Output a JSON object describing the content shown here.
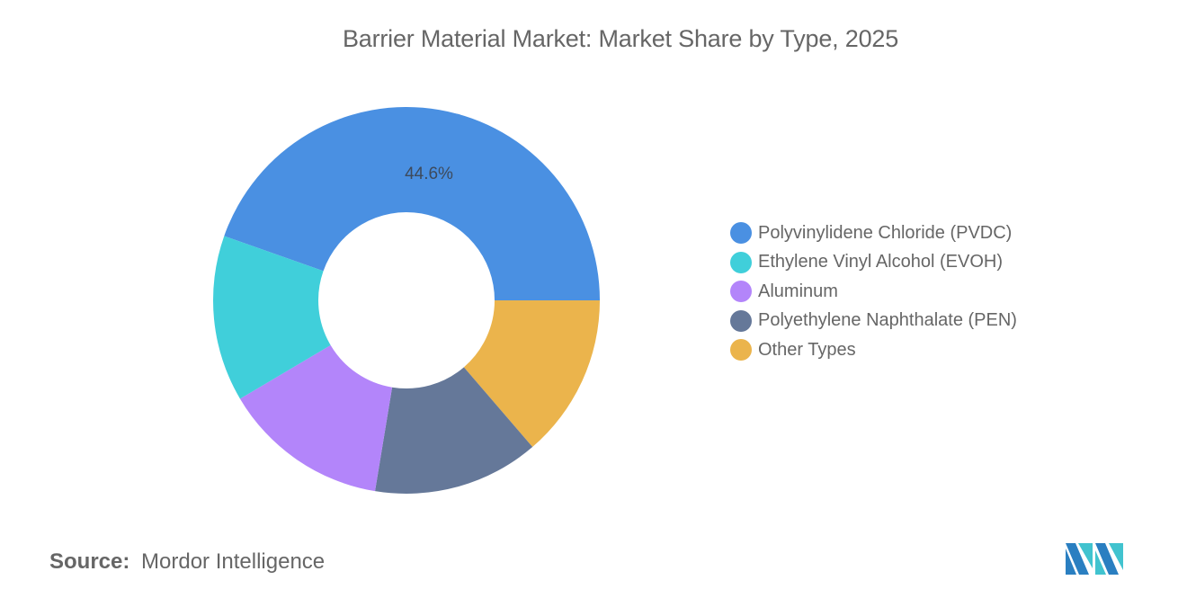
{
  "title": "Barrier Material Market: Market Share by Type, 2025",
  "source": {
    "label": "Source:",
    "value": "Mordor Intelligence"
  },
  "legend": [
    {
      "label": "Polyvinylidene Chloride (PVDC)",
      "color": "#4a90e2"
    },
    {
      "label": "Ethylene Vinyl Alcohol (EVOH)",
      "color": "#40cfda"
    },
    {
      "label": "Aluminum",
      "color": "#b385fa"
    },
    {
      "label": "Polyethylene Naphthalate (PEN)",
      "color": "#657899"
    },
    {
      "label": "Other Types",
      "color": "#ebb44c"
    }
  ],
  "chart_data": {
    "type": "pie",
    "subtype": "donut",
    "title": "Barrier Material Market: Market Share by Type, 2025",
    "categories": [
      "Polyvinylidene Chloride (PVDC)",
      "Ethylene Vinyl Alcohol (EVOH)",
      "Aluminum",
      "Polyethylene Naphthalate (PEN)",
      "Other Types"
    ],
    "values": [
      44.6,
      13.9,
      13.9,
      13.9,
      13.7
    ],
    "colors": [
      "#4a90e2",
      "#40cfda",
      "#b385fa",
      "#657899",
      "#ebb44c"
    ],
    "data_labels": [
      {
        "category": "Polyvinylidene Chloride (PVDC)",
        "text": "44.6%"
      }
    ],
    "legend_position": "right",
    "source": "Mordor Intelligence"
  }
}
